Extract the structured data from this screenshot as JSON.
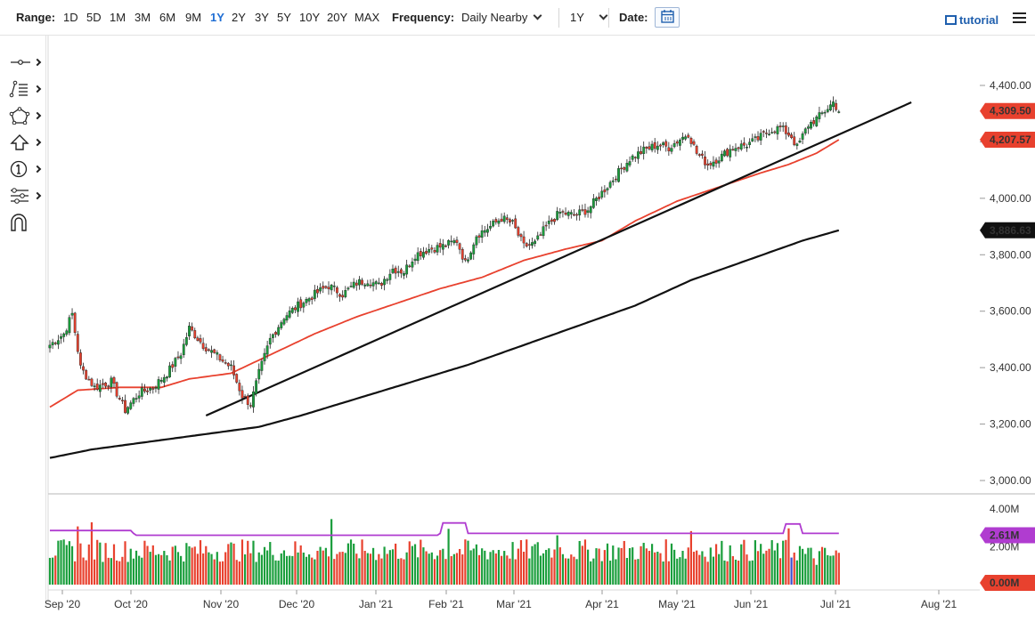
{
  "toolbar": {
    "range_label": "Range:",
    "ranges": [
      "1D",
      "5D",
      "1M",
      "3M",
      "6M",
      "9M",
      "1Y",
      "2Y",
      "3Y",
      "5Y",
      "10Y",
      "20Y",
      "MAX"
    ],
    "active_range": "1Y",
    "frequency_label": "Frequency:",
    "frequency_value": "Daily Nearby",
    "period_value": "1Y",
    "date_label": "Date:",
    "tutorial_label": "tutorial"
  },
  "sidebar": {
    "tools": [
      "crosshair-tool",
      "fibonacci-tool",
      "shapes-tool",
      "arrows-tool",
      "annotation-tool",
      "indicators-tool",
      "magnet-tool"
    ]
  },
  "colors": {
    "up": "#1a9e3c",
    "down": "#e8412e",
    "ma_short": "#e8412e",
    "ma_long": "#111111",
    "volume_avg": "#b03cd0",
    "volume_highlight": "#3b4fd1"
  },
  "chart_data": [
    {
      "type": "candlestick",
      "y_ticks": [
        "4,400.00",
        "4,200.00",
        "4,000.00",
        "3,800.00",
        "3,600.00",
        "3,400.00",
        "3,200.00",
        "3,000.00"
      ],
      "ylim": [
        3000,
        4400
      ],
      "x_ticks": [
        "Sep '20",
        "Oct '20",
        "Nov '20",
        "Dec '20",
        "Jan '21",
        "Feb '21",
        "Mar '21",
        "Apr '21",
        "May '21",
        "Jun '21",
        "Jul '21",
        "Aug '21"
      ],
      "price_labels": [
        {
          "value": "4,309.50",
          "color": "#e8412e"
        },
        {
          "value": "4,207.57",
          "color": "#e8412e"
        },
        {
          "value": "3,886.63",
          "color": "#111111"
        }
      ],
      "close_path": [
        [
          0,
          3480
        ],
        [
          5,
          3520
        ],
        [
          8,
          3590
        ],
        [
          11,
          3400
        ],
        [
          16,
          3330
        ],
        [
          22,
          3350
        ],
        [
          27,
          3250
        ],
        [
          32,
          3310
        ],
        [
          37,
          3330
        ],
        [
          42,
          3380
        ],
        [
          47,
          3450
        ],
        [
          50,
          3540
        ],
        [
          55,
          3480
        ],
        [
          60,
          3440
        ],
        [
          65,
          3400
        ],
        [
          69,
          3300
        ],
        [
          72,
          3270
        ],
        [
          75,
          3380
        ],
        [
          79,
          3500
        ],
        [
          84,
          3580
        ],
        [
          89,
          3620
        ],
        [
          95,
          3660
        ],
        [
          100,
          3690
        ],
        [
          105,
          3660
        ],
        [
          110,
          3700
        ],
        [
          114,
          3710
        ],
        [
          118,
          3690
        ],
        [
          123,
          3750
        ],
        [
          127,
          3740
        ],
        [
          131,
          3800
        ],
        [
          136,
          3820
        ],
        [
          141,
          3830
        ],
        [
          146,
          3850
        ],
        [
          149,
          3770
        ],
        [
          153,
          3870
        ],
        [
          158,
          3900
        ],
        [
          162,
          3930
        ],
        [
          166,
          3910
        ],
        [
          170,
          3830
        ],
        [
          174,
          3840
        ],
        [
          178,
          3900
        ],
        [
          183,
          3950
        ],
        [
          188,
          3940
        ],
        [
          193,
          3960
        ],
        [
          198,
          4020
        ],
        [
          203,
          4080
        ],
        [
          208,
          4140
        ],
        [
          213,
          4170
        ],
        [
          218,
          4190
        ],
        [
          222,
          4180
        ],
        [
          226,
          4210
        ],
        [
          229,
          4230
        ],
        [
          232,
          4160
        ],
        [
          236,
          4120
        ],
        [
          241,
          4150
        ],
        [
          245,
          4180
        ],
        [
          250,
          4190
        ],
        [
          254,
          4210
        ],
        [
          258,
          4240
        ],
        [
          262,
          4250
        ],
        [
          266,
          4220
        ],
        [
          268,
          4180
        ],
        [
          272,
          4260
        ],
        [
          276,
          4290
        ],
        [
          279,
          4320
        ],
        [
          281,
          4340
        ],
        [
          283,
          4310
        ]
      ],
      "overlays": [
        {
          "name": "",
          "color": "#e8412e",
          "points": [
            [
              0,
              3260
            ],
            [
              10,
              3320
            ],
            [
              25,
              3330
            ],
            [
              40,
              3330
            ],
            [
              50,
              3360
            ],
            [
              65,
              3380
            ],
            [
              80,
              3450
            ],
            [
              95,
              3520
            ],
            [
              110,
              3580
            ],
            [
              125,
              3630
            ],
            [
              140,
              3680
            ],
            [
              155,
              3720
            ],
            [
              170,
              3780
            ],
            [
              185,
              3820
            ],
            [
              198,
              3850
            ],
            [
              210,
              3920
            ],
            [
              225,
              3990
            ],
            [
              240,
              4040
            ],
            [
              255,
              4090
            ],
            [
              265,
              4120
            ],
            [
              275,
              4160
            ],
            [
              283,
              4207.57
            ]
          ]
        },
        {
          "name": "",
          "color": "#111111",
          "points": [
            [
              0,
              3080
            ],
            [
              15,
              3110
            ],
            [
              30,
              3130
            ],
            [
              45,
              3150
            ],
            [
              60,
              3170
            ],
            [
              75,
              3190
            ],
            [
              90,
              3230
            ],
            [
              110,
              3290
            ],
            [
              130,
              3350
            ],
            [
              150,
              3410
            ],
            [
              170,
              3480
            ],
            [
              190,
              3550
            ],
            [
              210,
              3620
            ],
            [
              230,
              3710
            ],
            [
              250,
              3780
            ],
            [
              270,
              3850
            ],
            [
              283,
              3886.63
            ]
          ]
        },
        {
          "name": "",
          "color": "#111111",
          "points": [
            [
              56,
              3230
            ],
            [
              309,
              4340
            ]
          ]
        }
      ]
    },
    {
      "type": "bar",
      "name": "",
      "y_ticks": [
        "4.00M",
        "2.00M",
        "0.00M"
      ],
      "ylim": [
        0,
        4.4
      ],
      "volume_avg_label": "2.61M",
      "volume_zero_label": "0.00M",
      "average_level": 2.61
    }
  ]
}
